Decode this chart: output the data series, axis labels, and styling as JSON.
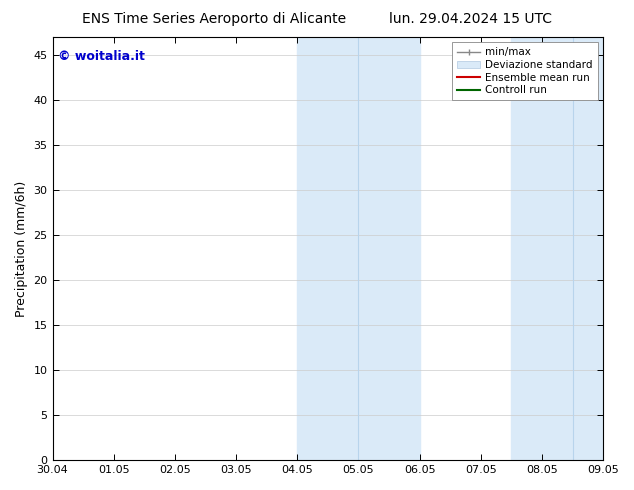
{
  "title_left": "ENS Time Series Aeroporto di Alicante",
  "title_right": "lun. 29.04.2024 15 UTC",
  "ylabel": "Precipitation (mm/6h)",
  "watermark": "© woitalia.it",
  "watermark_color": "#0000cc",
  "xtick_labels": [
    "30.04",
    "01.05",
    "02.05",
    "03.05",
    "04.05",
    "05.05",
    "06.05",
    "07.05",
    "08.05",
    "09.05"
  ],
  "xtick_positions": [
    0,
    1,
    2,
    3,
    4,
    5,
    6,
    7,
    8,
    9
  ],
  "ylim": [
    0,
    47
  ],
  "ytick_positions": [
    0,
    5,
    10,
    15,
    20,
    25,
    30,
    35,
    40,
    45
  ],
  "ytick_labels": [
    "0",
    "5",
    "10",
    "15",
    "20",
    "25",
    "30",
    "35",
    "40",
    "45"
  ],
  "shaded_regions": [
    {
      "x_start": 4.0,
      "x_end": 6.0
    },
    {
      "x_start": 7.5,
      "x_end": 9.0
    }
  ],
  "shaded_dividers": [
    5.0,
    8.5
  ],
  "shaded_color": "#daeaf8",
  "divider_color": "#b8d4ec",
  "background_color": "#ffffff",
  "plot_bg_color": "#ffffff",
  "grid_color": "#cccccc",
  "title_fontsize": 10,
  "tick_fontsize": 8,
  "ylabel_fontsize": 9,
  "legend_fontsize": 7.5,
  "watermark_fontsize": 9
}
